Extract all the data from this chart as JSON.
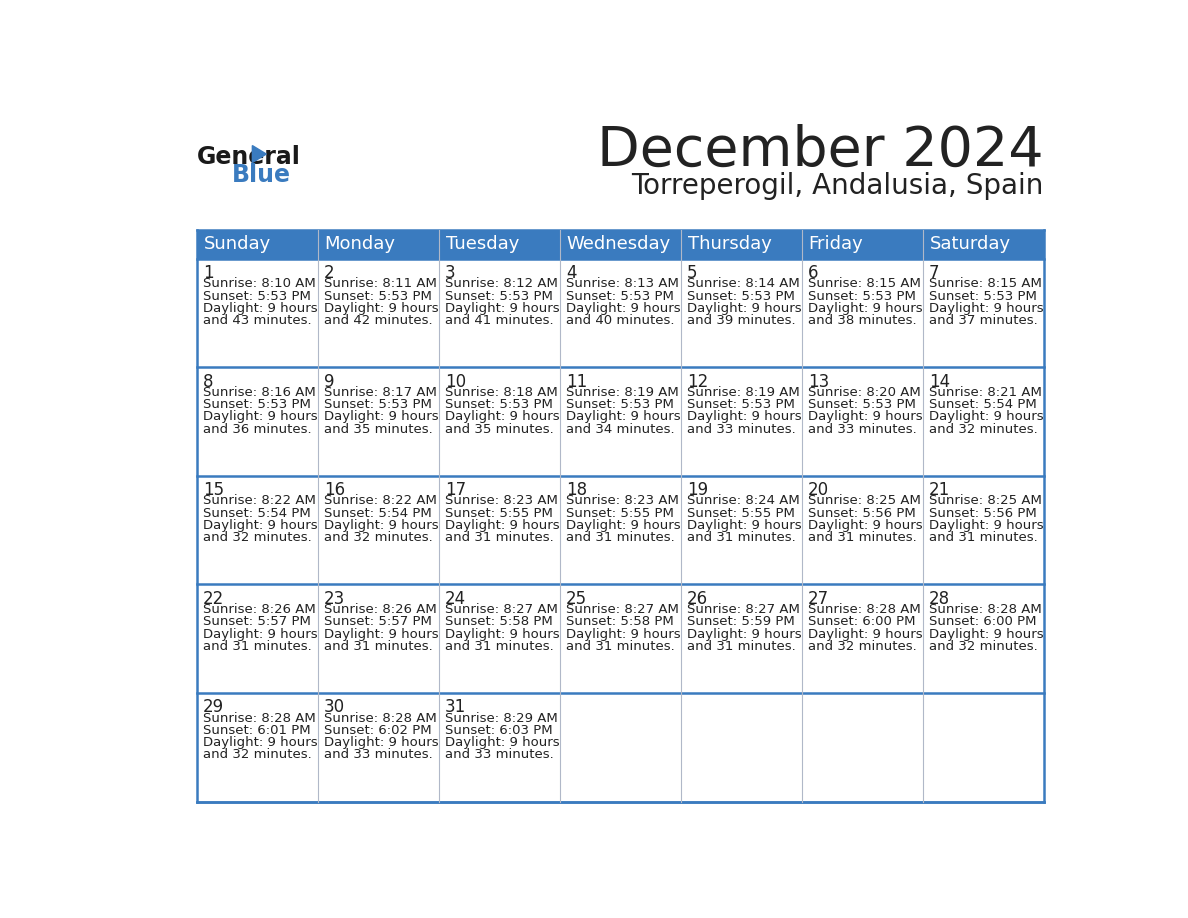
{
  "title": "December 2024",
  "subtitle": "Torreperogil, Andalusia, Spain",
  "header_color": "#3a7bbf",
  "header_text_color": "#ffffff",
  "cell_bg_color": "#ffffff",
  "border_color": "#3a7bbf",
  "text_color": "#222222",
  "days_of_week": [
    "Sunday",
    "Monday",
    "Tuesday",
    "Wednesday",
    "Thursday",
    "Friday",
    "Saturday"
  ],
  "weeks": [
    [
      {
        "day": 1,
        "sunrise": "8:10 AM",
        "sunset": "5:53 PM",
        "daylight_hours": 9,
        "daylight_minutes": 43
      },
      {
        "day": 2,
        "sunrise": "8:11 AM",
        "sunset": "5:53 PM",
        "daylight_hours": 9,
        "daylight_minutes": 42
      },
      {
        "day": 3,
        "sunrise": "8:12 AM",
        "sunset": "5:53 PM",
        "daylight_hours": 9,
        "daylight_minutes": 41
      },
      {
        "day": 4,
        "sunrise": "8:13 AM",
        "sunset": "5:53 PM",
        "daylight_hours": 9,
        "daylight_minutes": 40
      },
      {
        "day": 5,
        "sunrise": "8:14 AM",
        "sunset": "5:53 PM",
        "daylight_hours": 9,
        "daylight_minutes": 39
      },
      {
        "day": 6,
        "sunrise": "8:15 AM",
        "sunset": "5:53 PM",
        "daylight_hours": 9,
        "daylight_minutes": 38
      },
      {
        "day": 7,
        "sunrise": "8:15 AM",
        "sunset": "5:53 PM",
        "daylight_hours": 9,
        "daylight_minutes": 37
      }
    ],
    [
      {
        "day": 8,
        "sunrise": "8:16 AM",
        "sunset": "5:53 PM",
        "daylight_hours": 9,
        "daylight_minutes": 36
      },
      {
        "day": 9,
        "sunrise": "8:17 AM",
        "sunset": "5:53 PM",
        "daylight_hours": 9,
        "daylight_minutes": 35
      },
      {
        "day": 10,
        "sunrise": "8:18 AM",
        "sunset": "5:53 PM",
        "daylight_hours": 9,
        "daylight_minutes": 35
      },
      {
        "day": 11,
        "sunrise": "8:19 AM",
        "sunset": "5:53 PM",
        "daylight_hours": 9,
        "daylight_minutes": 34
      },
      {
        "day": 12,
        "sunrise": "8:19 AM",
        "sunset": "5:53 PM",
        "daylight_hours": 9,
        "daylight_minutes": 33
      },
      {
        "day": 13,
        "sunrise": "8:20 AM",
        "sunset": "5:53 PM",
        "daylight_hours": 9,
        "daylight_minutes": 33
      },
      {
        "day": 14,
        "sunrise": "8:21 AM",
        "sunset": "5:54 PM",
        "daylight_hours": 9,
        "daylight_minutes": 32
      }
    ],
    [
      {
        "day": 15,
        "sunrise": "8:22 AM",
        "sunset": "5:54 PM",
        "daylight_hours": 9,
        "daylight_minutes": 32
      },
      {
        "day": 16,
        "sunrise": "8:22 AM",
        "sunset": "5:54 PM",
        "daylight_hours": 9,
        "daylight_minutes": 32
      },
      {
        "day": 17,
        "sunrise": "8:23 AM",
        "sunset": "5:55 PM",
        "daylight_hours": 9,
        "daylight_minutes": 31
      },
      {
        "day": 18,
        "sunrise": "8:23 AM",
        "sunset": "5:55 PM",
        "daylight_hours": 9,
        "daylight_minutes": 31
      },
      {
        "day": 19,
        "sunrise": "8:24 AM",
        "sunset": "5:55 PM",
        "daylight_hours": 9,
        "daylight_minutes": 31
      },
      {
        "day": 20,
        "sunrise": "8:25 AM",
        "sunset": "5:56 PM",
        "daylight_hours": 9,
        "daylight_minutes": 31
      },
      {
        "day": 21,
        "sunrise": "8:25 AM",
        "sunset": "5:56 PM",
        "daylight_hours": 9,
        "daylight_minutes": 31
      }
    ],
    [
      {
        "day": 22,
        "sunrise": "8:26 AM",
        "sunset": "5:57 PM",
        "daylight_hours": 9,
        "daylight_minutes": 31
      },
      {
        "day": 23,
        "sunrise": "8:26 AM",
        "sunset": "5:57 PM",
        "daylight_hours": 9,
        "daylight_minutes": 31
      },
      {
        "day": 24,
        "sunrise": "8:27 AM",
        "sunset": "5:58 PM",
        "daylight_hours": 9,
        "daylight_minutes": 31
      },
      {
        "day": 25,
        "sunrise": "8:27 AM",
        "sunset": "5:58 PM",
        "daylight_hours": 9,
        "daylight_minutes": 31
      },
      {
        "day": 26,
        "sunrise": "8:27 AM",
        "sunset": "5:59 PM",
        "daylight_hours": 9,
        "daylight_minutes": 31
      },
      {
        "day": 27,
        "sunrise": "8:28 AM",
        "sunset": "6:00 PM",
        "daylight_hours": 9,
        "daylight_minutes": 32
      },
      {
        "day": 28,
        "sunrise": "8:28 AM",
        "sunset": "6:00 PM",
        "daylight_hours": 9,
        "daylight_minutes": 32
      }
    ],
    [
      {
        "day": 29,
        "sunrise": "8:28 AM",
        "sunset": "6:01 PM",
        "daylight_hours": 9,
        "daylight_minutes": 32
      },
      {
        "day": 30,
        "sunrise": "8:28 AM",
        "sunset": "6:02 PM",
        "daylight_hours": 9,
        "daylight_minutes": 33
      },
      {
        "day": 31,
        "sunrise": "8:29 AM",
        "sunset": "6:03 PM",
        "daylight_hours": 9,
        "daylight_minutes": 33
      },
      null,
      null,
      null,
      null
    ]
  ],
  "logo_color1": "#1a1a1a",
  "logo_color2": "#3a7bbf",
  "logo_triangle_color": "#3a7bbf"
}
